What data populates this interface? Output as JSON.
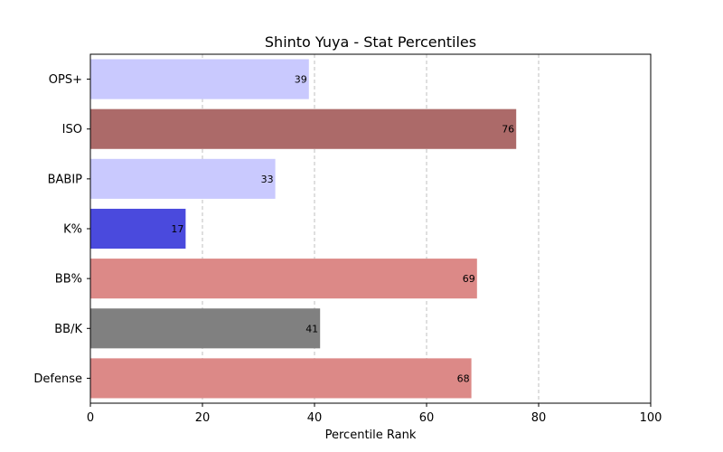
{
  "chart_data": {
    "type": "bar",
    "orientation": "horizontal",
    "title": "Shinto Yuya - Stat Percentiles",
    "xlabel": "Percentile Rank",
    "ylabel": "",
    "xlim": [
      0,
      100
    ],
    "xticks": [
      0,
      20,
      40,
      60,
      80,
      100
    ],
    "grid": "x-dashed",
    "categories": [
      "OPS+",
      "ISO",
      "BABIP",
      "K%",
      "BB%",
      "BB/K",
      "Defense"
    ],
    "values": [
      39,
      76,
      33,
      17,
      69,
      41,
      68
    ],
    "colors": [
      "#c9c9fe",
      "#ac6a69",
      "#c9c9fe",
      "#4a4add",
      "#dc8987",
      "#808080",
      "#dc8987"
    ]
  }
}
